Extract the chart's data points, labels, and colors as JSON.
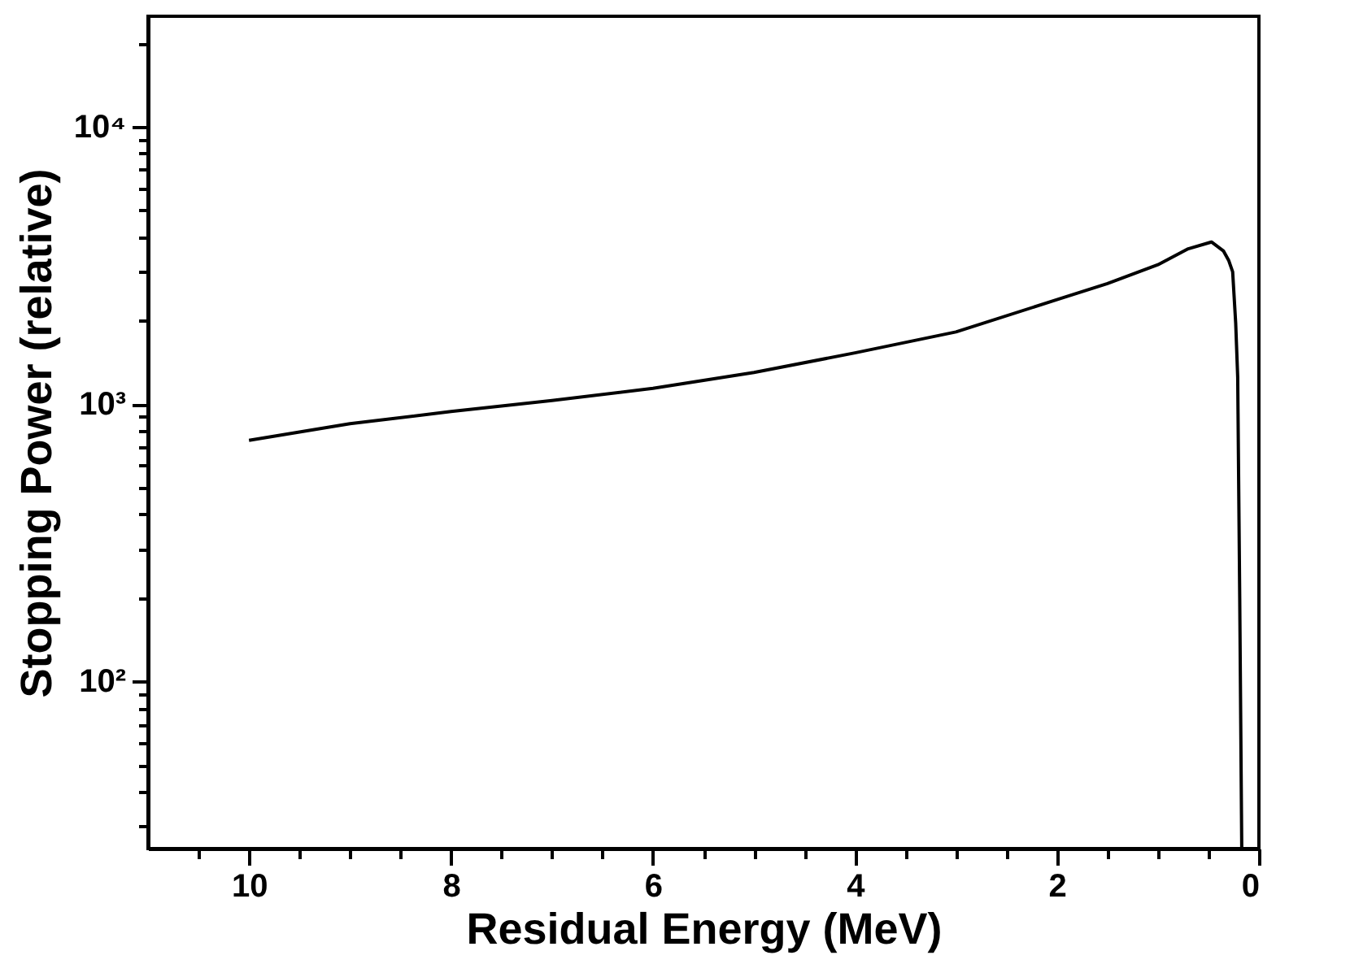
{
  "chart_data": {
    "type": "line",
    "xlabel": "Residual Energy (MeV)",
    "ylabel": "Stopping Power (relative)",
    "x": [
      10,
      9,
      8,
      7,
      6,
      5,
      4,
      3,
      2,
      1.5,
      1,
      0.7,
      0.47,
      0.35,
      0.3,
      0.26,
      0.23,
      0.21,
      0.19,
      0.17
    ],
    "series": [
      {
        "color": "#000000",
        "values": [
          740,
          850,
          940,
          1030,
          1140,
          1300,
          1530,
          1820,
          2380,
          2720,
          3180,
          3630,
          3840,
          3560,
          3300,
          3000,
          1960,
          1250,
          200,
          25
        ]
      }
    ],
    "xlim": [
      11,
      0
    ],
    "ylim": [
      25,
      25000
    ],
    "log": "y",
    "marker": "none",
    "line_style": "solid",
    "grid": false,
    "xticks": [
      0,
      {
        "value": 0.5,
        "label": null
      },
      {
        "value": 1,
        "label": null
      },
      {
        "value": 1.5,
        "label": null
      },
      2,
      {
        "value": 2.5,
        "label": null
      },
      {
        "value": 3,
        "label": null
      },
      {
        "value": 3.5,
        "label": null
      },
      4,
      {
        "value": 4.5,
        "label": null
      },
      {
        "value": 5,
        "label": null
      },
      {
        "value": 5.5,
        "label": null
      },
      6,
      {
        "value": 6.5,
        "label": null
      },
      {
        "value": 7,
        "label": null
      },
      {
        "value": 7.5,
        "label": null
      },
      8,
      {
        "value": 8.5,
        "label": null
      },
      {
        "value": 9,
        "label": null
      },
      {
        "value": 9.5,
        "label": null
      },
      10,
      {
        "value": 10.5,
        "label": null
      }
    ],
    "yticks": [
      {
        "value": 30,
        "label": null
      },
      {
        "value": 40,
        "label": null
      },
      {
        "value": 50,
        "label": null
      },
      {
        "value": 60,
        "label": null
      },
      {
        "value": 70,
        "label": null
      },
      {
        "value": 80,
        "label": null
      },
      {
        "value": 90,
        "label": null
      },
      {
        "value": 100,
        "label": "10²"
      },
      {
        "value": 200,
        "label": null
      },
      {
        "value": 300,
        "label": null
      },
      {
        "value": 400,
        "label": null
      },
      {
        "value": 500,
        "label": null
      },
      {
        "value": 600,
        "label": null
      },
      {
        "value": 700,
        "label": null
      },
      {
        "value": 800,
        "label": null
      },
      {
        "value": 900,
        "label": null
      },
      {
        "value": 1000,
        "label": "10³"
      },
      {
        "value": 2000,
        "label": null
      },
      {
        "value": 3000,
        "label": null
      },
      {
        "value": 4000,
        "label": null
      },
      {
        "value": 5000,
        "label": null
      },
      {
        "value": 6000,
        "label": null
      },
      {
        "value": 7000,
        "label": null
      },
      {
        "value": 8000,
        "label": null
      },
      {
        "value": 9000,
        "label": null
      },
      {
        "value": 10000,
        "label": "10⁴"
      },
      {
        "value": 20000,
        "label": null
      }
    ]
  }
}
